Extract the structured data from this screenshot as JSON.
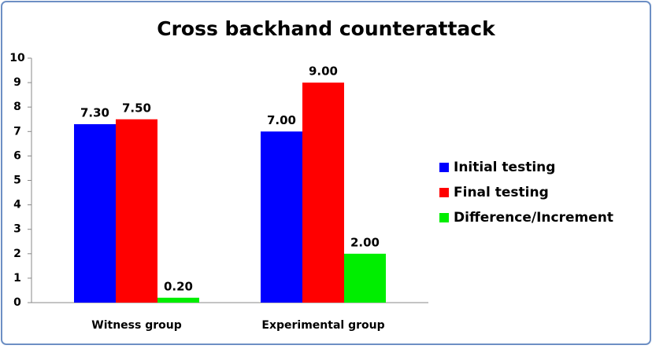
{
  "chart_data": {
    "type": "bar",
    "title": "Cross backhand counterattack",
    "categories": [
      "Witness group",
      "Experimental group"
    ],
    "series": [
      {
        "name": "Initial testing",
        "color": "#0000ff",
        "values": [
          7.3,
          7.0
        ],
        "value_labels": [
          "7.30",
          "7.00"
        ]
      },
      {
        "name": "Final testing",
        "color": "#ff0000",
        "values": [
          7.5,
          9.0
        ],
        "value_labels": [
          "7.50",
          "9.00"
        ]
      },
      {
        "name": "Difference/Increment",
        "color": "#00ee00",
        "values": [
          0.2,
          2.0
        ],
        "value_labels": [
          "0.20",
          "2.00"
        ]
      }
    ],
    "ylim": [
      0,
      10
    ],
    "yticks": [
      0,
      1,
      2,
      3,
      4,
      5,
      6,
      7,
      8,
      9,
      10
    ],
    "grid": false,
    "legend": "right"
  }
}
